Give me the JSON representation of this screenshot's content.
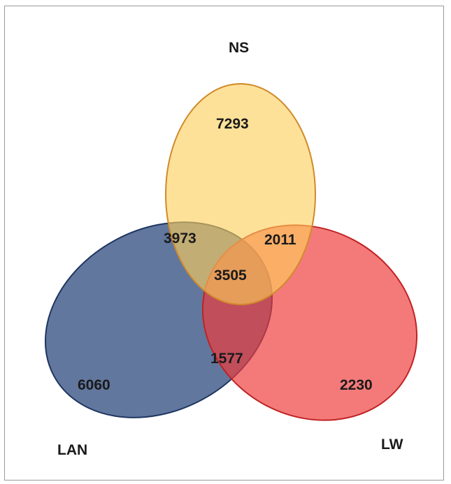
{
  "sets": {
    "ns": {
      "label": "NS",
      "color": "#fdcf5a",
      "stroke": "#d08a2a"
    },
    "lan": {
      "label": "LAN",
      "color": "#2e4a7e",
      "stroke": "#1e3560"
    },
    "lw": {
      "label": "LW",
      "color": "#ef3b3b",
      "stroke": "#c02222"
    }
  },
  "regions": {
    "ns_only": "7293",
    "lan_only": "6060",
    "lw_only": "2230",
    "ns_lan": "3973",
    "ns_lw": "2011",
    "lan_lw": "1577",
    "all_three": "3505"
  }
}
